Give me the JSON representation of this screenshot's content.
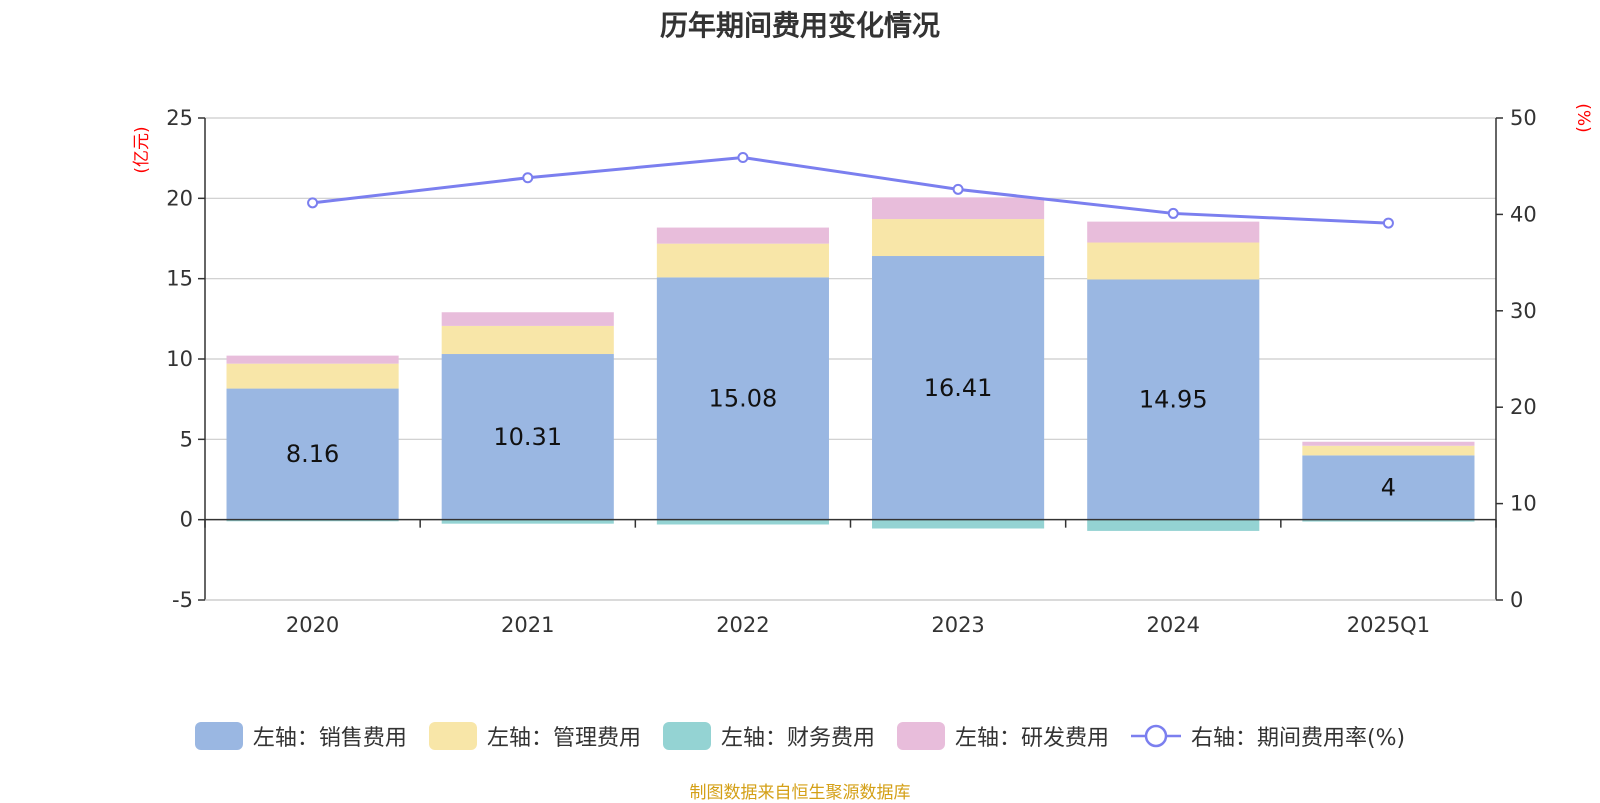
{
  "chart_data": {
    "type": "bar",
    "title": "历年期间费用变化情况",
    "categories": [
      "2020",
      "2021",
      "2022",
      "2023",
      "2024",
      "2025Q1"
    ],
    "series": [
      {
        "name": "左轴：销售费用",
        "axis": "left",
        "values": [
          8.16,
          10.31,
          15.08,
          16.41,
          14.95,
          4.0
        ],
        "labels": [
          "8.16",
          "10.31",
          "15.08",
          "16.41",
          "14.95",
          "4"
        ],
        "color": "#9ab7e2"
      },
      {
        "name": "左轴：管理费用",
        "axis": "left",
        "values": [
          1.55,
          1.75,
          2.1,
          2.3,
          2.3,
          0.6
        ],
        "color": "#f8e6a8"
      },
      {
        "name": "左轴：财务费用",
        "axis": "left",
        "values": [
          -0.1,
          -0.25,
          -0.3,
          -0.55,
          -0.7,
          -0.12
        ],
        "color": "#94d3d3"
      },
      {
        "name": "左轴：研发费用",
        "axis": "left",
        "values": [
          0.5,
          0.85,
          1.0,
          1.35,
          1.3,
          0.25
        ],
        "color": "#e8bddb"
      },
      {
        "name": "右轴：期间费用率(%)",
        "axis": "right",
        "type": "line",
        "values": [
          41.2,
          43.8,
          45.9,
          42.6,
          40.1,
          39.1
        ],
        "color": "#7b7fef"
      }
    ],
    "left_axis": {
      "unit": "(亿元)",
      "ylim": [
        -5,
        25
      ],
      "ticks": [
        -5,
        0,
        5,
        10,
        15,
        20,
        25
      ]
    },
    "right_axis": {
      "unit": "(%)",
      "ylim": [
        0,
        50
      ],
      "ticks": [
        0,
        10,
        20,
        30,
        40,
        50
      ]
    },
    "grid": true,
    "legend_position": "bottom",
    "source": "制图数据来自恒生聚源数据库"
  }
}
